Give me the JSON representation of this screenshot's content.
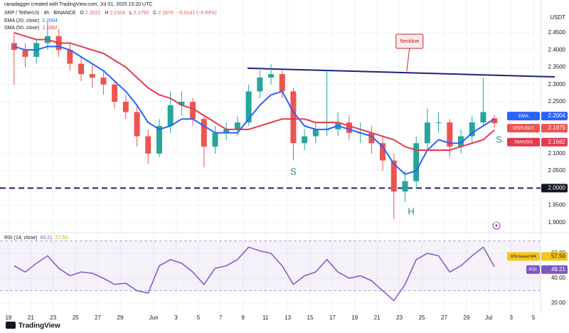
{
  "page": {
    "credit": "ranadagger created with TradingView.com, Jul 01, 2025 15:20 UTC",
    "logo": "TradingView"
  },
  "chart_data": [
    {
      "type": "candlestick",
      "title": "XRP / TetherUS · 4h · BINANCE",
      "quote": [
        {
          "label": "O",
          "value": 2.2021
        },
        {
          "label": "H",
          "value": 2.2104
        },
        {
          "label": "L",
          "value": 2.175,
          "value_label": "2.1750"
        },
        {
          "label": "C",
          "value": 2.1879
        }
      ],
      "change": "−0.0141 (−0.64%)",
      "currency": "USDT",
      "close_tag": "XRPUSDT",
      "x": [
        0.5,
        1.5,
        2.5,
        3.5,
        4.5,
        5.5,
        6.5,
        7.5,
        8.5,
        9.5,
        10.5,
        11.5,
        12.5,
        13.5,
        14.5,
        15.5,
        16.5,
        17.5,
        18.5,
        19.5,
        20.5,
        21.5,
        22.5,
        23.5,
        24.5,
        25.5,
        26.5,
        27.5,
        28.5,
        29.5,
        30.5,
        31.5,
        32.5,
        33.5,
        34.5,
        35.5,
        36.5,
        37.5,
        38.5,
        39.5,
        40.5,
        41.5,
        42.5,
        43.5
      ],
      "open": [
        2.42,
        2.4,
        2.38,
        2.42,
        2.44,
        2.4,
        2.36,
        2.33,
        2.32,
        2.3,
        2.25,
        2.22,
        2.15,
        2.1,
        2.18,
        2.24,
        2.25,
        2.2,
        2.12,
        2.16,
        2.17,
        2.19,
        2.28,
        2.32,
        2.33,
        2.28,
        2.13,
        2.15,
        2.17,
        2.17,
        2.19,
        2.16,
        2.16,
        2.13,
        2.08,
        1.99,
        2.02,
        2.13,
        2.19,
        2.19,
        2.12,
        2.15,
        2.19,
        2.2021
      ],
      "high": [
        2.45,
        2.42,
        2.43,
        2.48,
        2.46,
        2.42,
        2.38,
        2.36,
        2.34,
        2.31,
        2.27,
        2.24,
        2.17,
        2.2,
        2.28,
        2.28,
        2.26,
        2.21,
        2.18,
        2.19,
        2.21,
        2.3,
        2.34,
        2.36,
        2.34,
        2.29,
        2.17,
        2.19,
        2.34,
        2.22,
        2.21,
        2.19,
        2.18,
        2.15,
        2.1,
        2.05,
        2.15,
        2.23,
        2.22,
        2.2,
        2.17,
        2.21,
        2.32,
        2.2104
      ],
      "low": [
        2.3,
        2.35,
        2.36,
        2.4,
        2.38,
        2.34,
        2.31,
        2.29,
        2.27,
        2.23,
        2.2,
        2.12,
        2.07,
        2.09,
        2.16,
        2.21,
        2.18,
        2.06,
        2.1,
        2.14,
        2.15,
        2.18,
        2.26,
        2.3,
        2.26,
        2.08,
        2.11,
        2.13,
        2.15,
        2.15,
        2.14,
        2.13,
        2.1,
        2.05,
        1.91,
        1.96,
        2.0,
        2.11,
        2.16,
        2.09,
        2.1,
        2.13,
        2.18,
        2.175
      ],
      "close": [
        2.4,
        2.38,
        2.42,
        2.44,
        2.4,
        2.36,
        2.33,
        2.32,
        2.3,
        2.25,
        2.22,
        2.15,
        2.1,
        2.18,
        2.24,
        2.25,
        2.2,
        2.12,
        2.16,
        2.17,
        2.19,
        2.28,
        2.32,
        2.33,
        2.28,
        2.13,
        2.15,
        2.17,
        2.17,
        2.19,
        2.16,
        2.16,
        2.13,
        2.08,
        1.99,
        2.02,
        2.13,
        2.19,
        2.19,
        2.12,
        2.15,
        2.19,
        2.22,
        2.1879
      ],
      "up_color": "#26a69a",
      "down_color": "#ef5350",
      "series": [
        {
          "name": "EMA (20, close)",
          "tag": "EMA",
          "color": "#2962ff",
          "values": [
            2.41,
            2.4,
            2.4,
            2.41,
            2.41,
            2.4,
            2.38,
            2.36,
            2.34,
            2.31,
            2.28,
            2.24,
            2.19,
            2.17,
            2.18,
            2.2,
            2.2,
            2.18,
            2.16,
            2.16,
            2.16,
            2.2,
            2.24,
            2.27,
            2.28,
            2.22,
            2.18,
            2.17,
            2.17,
            2.18,
            2.17,
            2.16,
            2.15,
            2.12,
            2.07,
            2.04,
            2.05,
            2.11,
            2.14,
            2.13,
            2.13,
            2.16,
            2.18,
            2.2004
          ]
        },
        {
          "name": "SMA (50, close)",
          "tag": "SMA(50)",
          "color": "#e53950",
          "values": [
            2.45,
            2.44,
            2.43,
            2.43,
            2.42,
            2.42,
            2.41,
            2.4,
            2.39,
            2.37,
            2.35,
            2.32,
            2.29,
            2.27,
            2.26,
            2.24,
            2.23,
            2.21,
            2.19,
            2.17,
            2.17,
            2.17,
            2.18,
            2.19,
            2.2,
            2.2,
            2.2,
            2.19,
            2.19,
            2.19,
            2.18,
            2.17,
            2.16,
            2.15,
            2.14,
            2.12,
            2.11,
            2.11,
            2.11,
            2.11,
            2.12,
            2.13,
            2.14,
            2.1682
          ]
        }
      ],
      "xlim": [
        -0.76,
        47.63
      ],
      "ylim": [
        1.875,
        2.524
      ],
      "yticks": [
        {
          "value": 1.9,
          "label": "1.9000"
        },
        {
          "value": 1.95,
          "label": "1.9500"
        },
        {
          "value": 2,
          "label": "2.0000"
        },
        {
          "value": 2.05,
          "label": "2.0500"
        },
        {
          "value": 2.1,
          "label": "2.1000"
        },
        {
          "value": 2.25,
          "label": "2.2500"
        },
        {
          "value": 2.3,
          "label": "2.3000"
        },
        {
          "value": 2.35,
          "label": "2.3500"
        },
        {
          "value": 2.4,
          "label": "2.4000"
        },
        {
          "value": 2.45,
          "label": "2.4500"
        }
      ],
      "xticks": [
        {
          "value": 0,
          "label": "19"
        },
        {
          "value": 2,
          "label": "21"
        },
        {
          "value": 4,
          "label": "23"
        },
        {
          "value": 6,
          "label": "25"
        },
        {
          "value": 8,
          "label": "27"
        },
        {
          "value": 10,
          "label": "29"
        },
        {
          "value": 13,
          "label": "Jun"
        },
        {
          "value": 15,
          "label": "3"
        },
        {
          "value": 17,
          "label": "5"
        },
        {
          "value": 19,
          "label": "7"
        },
        {
          "value": 21,
          "label": "9"
        },
        {
          "value": 23,
          "label": "11"
        },
        {
          "value": 25,
          "label": "13"
        },
        {
          "value": 27,
          "label": "15"
        },
        {
          "value": 29,
          "label": "17"
        },
        {
          "value": 31,
          "label": "19"
        },
        {
          "value": 33,
          "label": "21"
        },
        {
          "value": 35,
          "label": "23"
        },
        {
          "value": 37,
          "label": "25"
        },
        {
          "value": 39,
          "label": "27"
        },
        {
          "value": 41,
          "label": "29"
        },
        {
          "value": 43,
          "label": "Jul"
        },
        {
          "value": 45,
          "label": "3"
        },
        {
          "value": 47,
          "label": "5"
        }
      ],
      "grid": true,
      "support": 2,
      "neckline": {
        "x": [
          21.4,
          48.9
        ],
        "y": [
          2.347,
          2.322
        ]
      },
      "annotations": [
        {
          "text": "Neckline",
          "x": 35.9,
          "y": 2.425
        },
        {
          "text": "S",
          "x": 25.5,
          "y": 2.046
        },
        {
          "text": "H",
          "x": 36.05,
          "y": 1.931
        },
        {
          "text": "S",
          "x": 43.9,
          "y": 2.139
        }
      ]
    },
    {
      "type": "line",
      "title": "RSI (14, close)",
      "x": [
        0.5,
        1.5,
        2.5,
        3.5,
        4.5,
        5.5,
        6.5,
        7.5,
        8.5,
        9.5,
        10.5,
        11.5,
        12.5,
        13.5,
        14.5,
        15.5,
        16.5,
        17.5,
        18.5,
        19.5,
        20.5,
        21.5,
        22.5,
        23.5,
        24.5,
        25.5,
        26.5,
        27.5,
        28.5,
        29.5,
        30.5,
        31.5,
        32.5,
        33.5,
        34.5,
        35.5,
        36.5,
        37.5,
        38.5,
        39.5,
        40.5,
        41.5,
        42.5,
        43.5
      ],
      "series": [
        {
          "name": "RSI",
          "color": "#7e57c2",
          "values": [
            50,
            45,
            52,
            58,
            48,
            42,
            45,
            44,
            40,
            35,
            36,
            30,
            28,
            50,
            55,
            52,
            45,
            35,
            48,
            50,
            55,
            65,
            62,
            60,
            50,
            35,
            42,
            45,
            55,
            45,
            40,
            42,
            38,
            30,
            22,
            35,
            55,
            60,
            58,
            45,
            50,
            58,
            65,
            49.21
          ]
        }
      ],
      "ma": {
        "name": "RSI-based MA",
        "value": 57.5,
        "value_label": "57.50",
        "color": "#f5c518"
      },
      "bands": [
        30,
        70
      ],
      "ylim": [
        12,
        74.9
      ],
      "yticks": [
        {
          "value": 20,
          "label": "20.00"
        },
        {
          "value": 40,
          "label": "40.00"
        },
        {
          "value": 60,
          "label": "60.00"
        }
      ],
      "grid": true
    }
  ]
}
